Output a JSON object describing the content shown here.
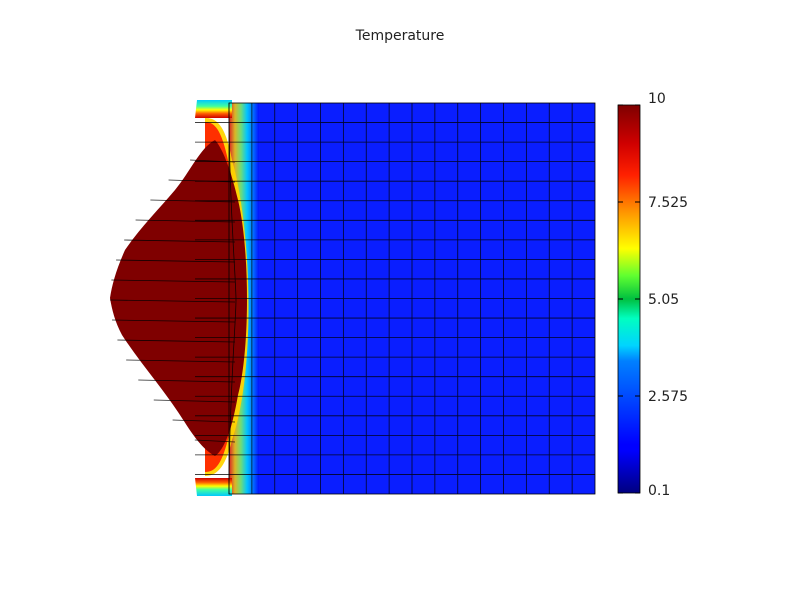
{
  "chart_data": {
    "type": "heatmap",
    "title": "Temperature",
    "field": "Temperature",
    "colormap": "jet",
    "colorbar": {
      "min": 0.1,
      "max": 10,
      "ticks": [
        0.1,
        2.575,
        5.05,
        7.525,
        10
      ],
      "tick_labels": [
        "0.1",
        "2.575",
        "5.05",
        "7.525",
        "10"
      ],
      "placement": "right"
    },
    "mesh": {
      "columns": 16,
      "rows": 20,
      "grid_lines": true
    },
    "regions": [
      {
        "region": "hot bulge (left)",
        "value": 10
      },
      {
        "region": "ambient domain",
        "value": 1.2
      }
    ]
  }
}
